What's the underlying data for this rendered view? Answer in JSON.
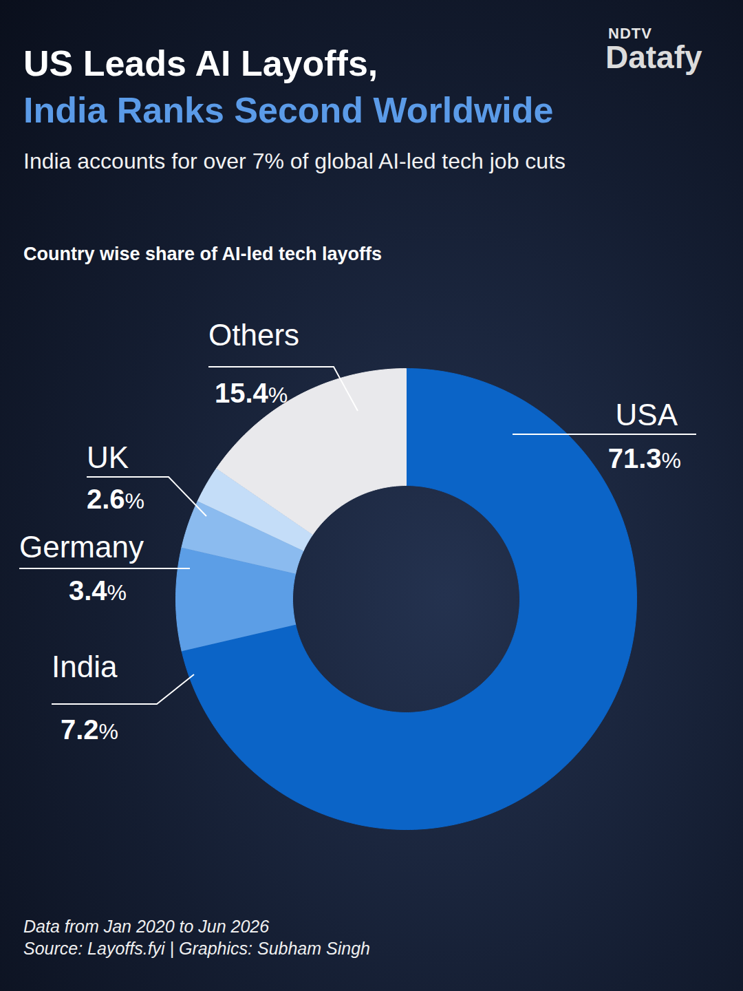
{
  "chart_data": {
    "type": "donut",
    "title": [
      "US Leads AI Layoffs,",
      "India Ranks Second Worldwide"
    ],
    "subtitle": "India accounts for over 7% of global AI-led tech job cuts",
    "chart_title": "Country wise share of AI-led tech layoffs",
    "categories": [
      "USA",
      "India",
      "Germany",
      "UK",
      "Others"
    ],
    "values": [
      71.3,
      7.2,
      3.4,
      2.6,
      15.4
    ],
    "value_labels": [
      "71.3%",
      "7.2%",
      "3.4%",
      "2.6%",
      "15.4%"
    ],
    "colors": [
      "#0b64c7",
      "#5c9ee6",
      "#8bbbef",
      "#c4ddf8",
      "#e9e9ec"
    ],
    "data_labels": true,
    "notes": [
      "Data from Jan 2020 to Jun 2026",
      "Source: Layoffs.fyi | Graphics: Subham Singh"
    ],
    "logo": [
      "NDTV",
      "Datafy"
    ]
  }
}
